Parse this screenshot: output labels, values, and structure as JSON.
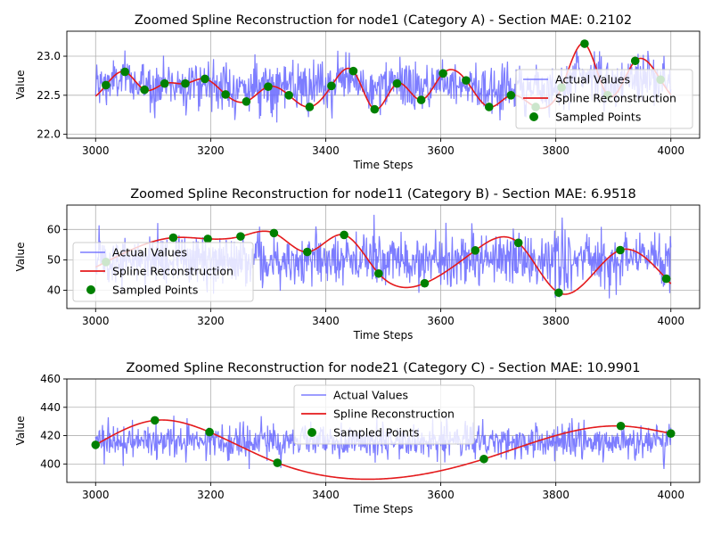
{
  "chart_data": [
    {
      "type": "line",
      "title": "Zoomed Spline Reconstruction for node1 (Category A) - Section MAE: 0.2102",
      "xlabel": "Time Steps",
      "ylabel": "Value",
      "xlim": [
        2950,
        4050
      ],
      "ylim": [
        21.95,
        23.32
      ],
      "xticks": [
        3000,
        3200,
        3400,
        3600,
        3800,
        4000
      ],
      "yticks": [
        22.0,
        22.5,
        23.0
      ],
      "ytick_labels": [
        "22.0",
        "22.5",
        "23.0"
      ],
      "grid": true,
      "legend": {
        "placement": "center-right",
        "entries": [
          "Actual Values",
          "Spline Reconstruction",
          "Sampled Points"
        ]
      },
      "actual": {
        "name": "Actual Values",
        "color": "#6666ff",
        "x_range": [
          3000,
          4000
        ],
        "center": 22.65,
        "amplitude": 0.28,
        "min": 22.0,
        "max": 23.28
      },
      "spline": {
        "name": "Spline Reconstruction",
        "color": "#e41a1c"
      },
      "sampled_points": {
        "name": "Sampled Points",
        "color": "#008000",
        "x": [
          3018,
          3051,
          3085,
          3120,
          3156,
          3190,
          3226,
          3262,
          3300,
          3336,
          3372,
          3410,
          3448,
          3485,
          3524,
          3566,
          3604,
          3644,
          3684,
          3722,
          3765,
          3810,
          3850,
          3890,
          3938,
          3982
        ],
        "y": [
          22.63,
          22.8,
          22.57,
          22.65,
          22.65,
          22.71,
          22.51,
          22.42,
          22.61,
          22.5,
          22.35,
          22.62,
          22.81,
          22.32,
          22.65,
          22.44,
          22.78,
          22.69,
          22.35,
          22.5,
          22.35,
          22.6,
          23.16,
          22.5,
          22.94,
          22.7
        ]
      }
    },
    {
      "type": "line",
      "title": "Zoomed Spline Reconstruction for node11 (Category B) - Section MAE: 6.9518",
      "xlabel": "Time Steps",
      "ylabel": "Value",
      "xlim": [
        2950,
        4050
      ],
      "ylim": [
        34,
        68
      ],
      "xticks": [
        3000,
        3200,
        3400,
        3600,
        3800,
        4000
      ],
      "yticks": [
        40,
        50,
        60
      ],
      "ytick_labels": [
        "40",
        "50",
        "60"
      ],
      "grid": true,
      "legend": {
        "placement": "center-left",
        "entries": [
          "Actual Values",
          "Spline Reconstruction",
          "Sampled Points"
        ]
      },
      "actual": {
        "name": "Actual Values",
        "color": "#6666ff",
        "x_range": [
          3000,
          4000
        ],
        "center": 50,
        "amplitude": 8,
        "min": 35,
        "max": 66
      },
      "spline": {
        "name": "Spline Reconstruction",
        "color": "#e41a1c"
      },
      "sampled_points": {
        "name": "Sampled Points",
        "color": "#008000",
        "x": [
          3018,
          3135,
          3195,
          3252,
          3310,
          3368,
          3432,
          3492,
          3572,
          3660,
          3735,
          3805,
          3912,
          3992
        ],
        "y": [
          49.3,
          57.3,
          56.9,
          57.7,
          58.8,
          52.6,
          58.2,
          45.5,
          42.3,
          53.1,
          55.6,
          39.2,
          53.2,
          43.8
        ]
      }
    },
    {
      "type": "line",
      "title": "Zoomed Spline Reconstruction for node21 (Category C) - Section MAE: 10.9901",
      "xlabel": "Time Steps",
      "ylabel": "Value",
      "xlim": [
        2950,
        4050
      ],
      "ylim": [
        387,
        460
      ],
      "xticks": [
        3000,
        3200,
        3400,
        3600,
        3800,
        4000
      ],
      "yticks": [
        400,
        420,
        440,
        460
      ],
      "ytick_labels": [
        "400",
        "420",
        "440",
        "460"
      ],
      "grid": true,
      "legend": {
        "placement": "upper-center",
        "entries": [
          "Actual Values",
          "Spline Reconstruction",
          "Sampled Points"
        ]
      },
      "actual": {
        "name": "Actual Values",
        "color": "#6666ff",
        "x_range": [
          3000,
          4000
        ],
        "center": 416,
        "amplitude": 11,
        "min": 390,
        "max": 455
      },
      "spline": {
        "name": "Spline Reconstruction",
        "color": "#e41a1c"
      },
      "sampled_points": {
        "name": "Sampled Points",
        "color": "#008000",
        "x": [
          3000,
          3103,
          3198,
          3316,
          3675,
          3913,
          4000
        ],
        "y": [
          413.5,
          430.8,
          422.5,
          400.8,
          403.5,
          426.8,
          421.5
        ]
      }
    }
  ]
}
